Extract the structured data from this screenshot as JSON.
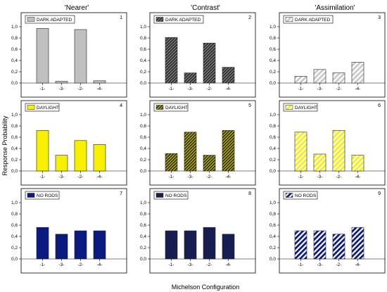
{
  "figure": {
    "ylabel": "Response Probability",
    "xlabel": "Michelson Configuration",
    "column_titles": [
      "'Nearer'",
      "'Contrast'",
      "'Assimilation'"
    ]
  },
  "chart_data": [
    {
      "type": "bar",
      "number": "1",
      "legend": "DARK ADAPTED",
      "color": "#c0c0c0",
      "hatch": "none",
      "categories": [
        "-1-",
        "-3-",
        "-2-",
        "-4-"
      ],
      "values": [
        0.97,
        0.03,
        0.95,
        0.04
      ],
      "ylim": [
        0,
        1.1
      ],
      "yticks": [
        "0,0",
        "0,2",
        "0,4",
        "0,6",
        "0,8",
        "1,0"
      ]
    },
    {
      "type": "bar",
      "number": "2",
      "legend": "DARK ADAPTED",
      "color": "#808080",
      "hatch": "dense",
      "categories": [
        "-1-",
        "-3-",
        "-2-",
        "-4-"
      ],
      "values": [
        0.81,
        0.18,
        0.71,
        0.28
      ],
      "ylim": [
        0,
        1.1
      ],
      "yticks": [
        "0,0",
        "0,2",
        "0,4",
        "0,6",
        "0,8",
        "1,0"
      ]
    },
    {
      "type": "bar",
      "number": "3",
      "legend": "DARK ADAPTED",
      "color": "#c8c8c8",
      "hatch": "sparse",
      "categories": [
        "-1-",
        "-3-",
        "-2-",
        "-4-"
      ],
      "values": [
        0.12,
        0.24,
        0.18,
        0.37
      ],
      "ylim": [
        0,
        1.1
      ],
      "yticks": [
        "0,0",
        "0,2",
        "0,4",
        "0,6",
        "0,8",
        "1,0"
      ]
    },
    {
      "type": "bar",
      "number": "4",
      "legend": "DAYLIGHT",
      "color": "#f7f000",
      "hatch": "none",
      "categories": [
        "-1-",
        "-3-",
        "-2-",
        "-4-"
      ],
      "values": [
        0.72,
        0.28,
        0.54,
        0.47
      ],
      "ylim": [
        0,
        1.1
      ],
      "yticks": [
        "0,0",
        "0,2",
        "0,4",
        "0,6",
        "0,8",
        "1,0"
      ]
    },
    {
      "type": "bar",
      "number": "5",
      "legend": "DAYLIGHT",
      "color": "#b8b000",
      "hatch": "dense",
      "categories": [
        "-1-",
        "-3-",
        "-2-",
        "-4-"
      ],
      "values": [
        0.31,
        0.69,
        0.28,
        0.72
      ],
      "ylim": [
        0,
        1.1
      ],
      "yticks": [
        "0,0",
        "0,2",
        "0,4",
        "0,6",
        "0,8",
        "1,0"
      ]
    },
    {
      "type": "bar",
      "number": "6",
      "legend": "DAYLIGHT",
      "color": "#f7f000",
      "hatch": "sparse",
      "categories": [
        "-1-",
        "-3-",
        "-2-",
        "-4-"
      ],
      "values": [
        0.69,
        0.3,
        0.72,
        0.28
      ],
      "ylim": [
        0,
        1.1
      ],
      "yticks": [
        "0,0",
        "0,2",
        "0,4",
        "0,6",
        "0,8",
        "1,0"
      ]
    },
    {
      "type": "bar",
      "number": "7",
      "legend": "NO RODS",
      "color": "#0a1a80",
      "hatch": "none",
      "categories": [
        "-1-",
        "-3-",
        "-2-",
        "-4-"
      ],
      "values": [
        0.56,
        0.44,
        0.5,
        0.5
      ],
      "ylim": [
        0,
        1.1
      ],
      "yticks": [
        "0,0",
        "0,2",
        "0,4",
        "0,6",
        "0,8",
        "1,0"
      ]
    },
    {
      "type": "bar",
      "number": "8",
      "legend": "NO RODS",
      "color": "#0a1a80",
      "hatch": "dense",
      "categories": [
        "-1-",
        "-3-",
        "-2-",
        "-4-"
      ],
      "values": [
        0.5,
        0.5,
        0.56,
        0.44
      ],
      "ylim": [
        0,
        1.1
      ],
      "yticks": [
        "0,0",
        "0,2",
        "0,4",
        "0,6",
        "0,8",
        "1,0"
      ]
    },
    {
      "type": "bar",
      "number": "9",
      "legend": "NO RODS",
      "color": "#0a1a80",
      "hatch": "sparse",
      "categories": [
        "-1-",
        "-3-",
        "-2-",
        "-4-"
      ],
      "values": [
        0.5,
        0.5,
        0.44,
        0.56
      ],
      "ylim": [
        0,
        1.1
      ],
      "yticks": [
        "0,0",
        "0,2",
        "0,4",
        "0,6",
        "0,8",
        "1,0"
      ]
    }
  ]
}
